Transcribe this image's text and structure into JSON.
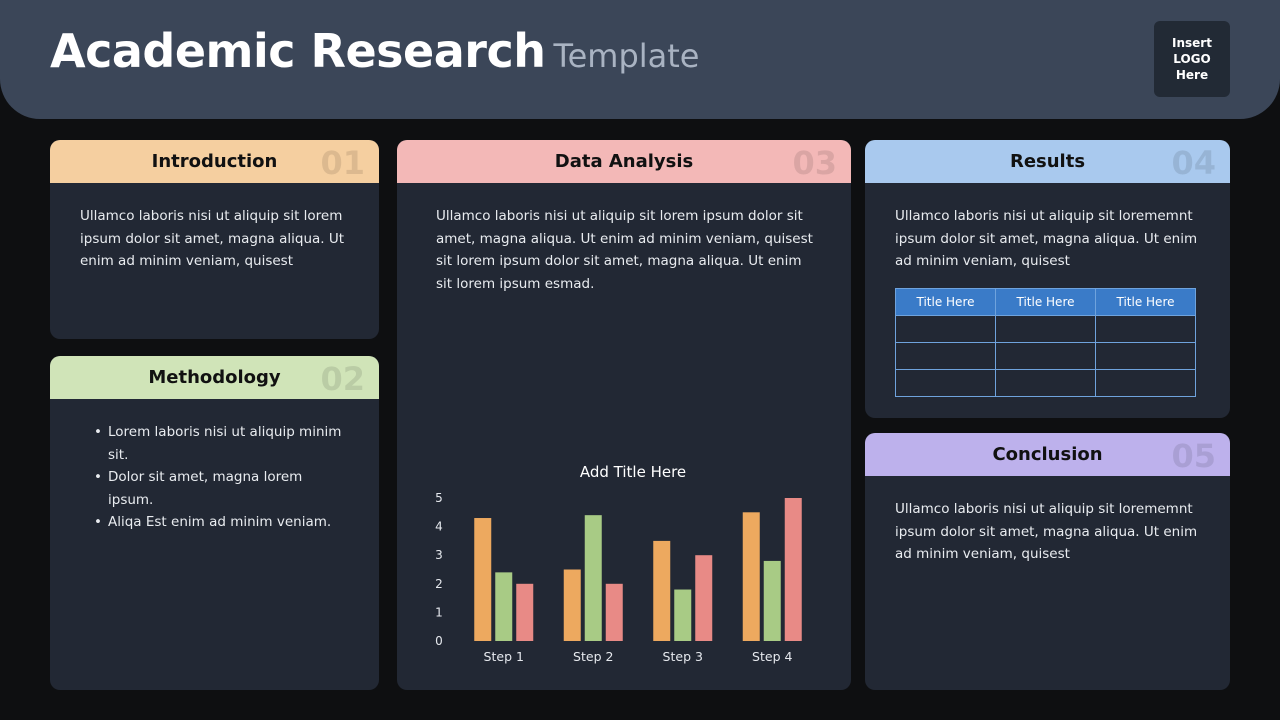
{
  "header": {
    "title_main": "Academic Research",
    "title_sub": "Template",
    "logo_text": "Insert\nLOGO\nHere"
  },
  "cards": {
    "introduction": {
      "title": "Introduction",
      "number": "01",
      "text": "Ullamco laboris nisi ut aliquip  sit  lorem ipsum dolor sit amet, magna aliqua. Ut enim ad minim veniam, quisest"
    },
    "methodology": {
      "title": "Methodology",
      "number": "02",
      "bullets": [
        "Lorem laboris nisi ut aliquip minim sit.",
        "Dolor sit amet, magna lorem ipsum.",
        "Aliqa Est enim ad minim veniam."
      ]
    },
    "data_analysis": {
      "title": "Data Analysis",
      "number": "03",
      "text": "Ullamco laboris nisi ut aliquip  sit  lorem ipsum dolor sit amet, magna aliqua. Ut enim ad minim veniam, quisest sit  lorem ipsum dolor sit amet, magna aliqua. Ut enim sit  lorem ipsum esmad."
    },
    "results": {
      "title": "Results",
      "number": "04",
      "text": "Ullamco laboris nisi ut aliquip  sit  lorememnt ipsum dolor sit amet, magna aliqua. Ut enim ad minim veniam, quisest",
      "table": {
        "headers": [
          "Title Here",
          "Title Here",
          "Title Here"
        ],
        "rows": [
          [
            "",
            "",
            ""
          ],
          [
            "",
            "",
            ""
          ],
          [
            "",
            "",
            ""
          ]
        ]
      }
    },
    "conclusion": {
      "title": "Conclusion",
      "number": "05",
      "text": "Ullamco laboris nisi ut aliquip  sit  lorememnt ipsum dolor sit amet, magna aliqua. Ut enim ad minim veniam, quisest"
    }
  },
  "colors": {
    "header_bg": "#3b4658",
    "introduction": "#f5cfa0",
    "methodology": "#d0e4b8",
    "data_analysis": "#f3b8b7",
    "results": "#a9c9ee",
    "conclusion": "#bdb1ec"
  },
  "chart_data": {
    "type": "bar",
    "title": "Add Title Here",
    "categories": [
      "Step 1",
      "Step 2",
      "Step 3",
      "Step 4"
    ],
    "series": [
      {
        "values": [
          4.3,
          2.5,
          3.5,
          4.5
        ],
        "color": "#eda95f"
      },
      {
        "values": [
          2.4,
          4.4,
          1.8,
          2.8
        ],
        "color": "#a8cb85"
      },
      {
        "values": [
          2.0,
          2.0,
          3.0,
          5.0
        ],
        "color": "#e88a86"
      }
    ],
    "yticks": [
      0,
      1,
      2,
      3,
      4,
      5
    ],
    "ylim": [
      0,
      5
    ],
    "grid": false,
    "legend": "none"
  }
}
